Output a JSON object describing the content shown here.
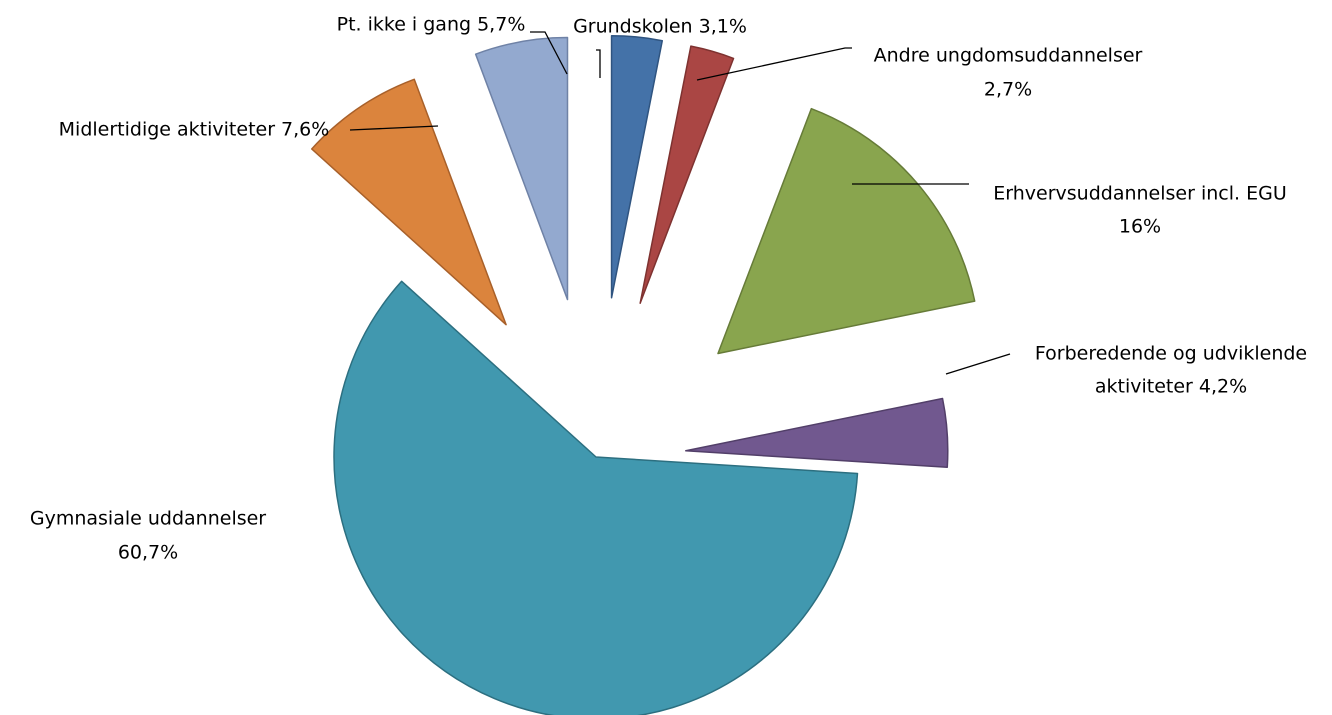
{
  "chart_data": {
    "type": "pie",
    "title": "",
    "legend": "none",
    "start_angle_deg": 0,
    "direction": "clockwise",
    "slices": [
      {
        "label": "Grundskolen",
        "value": 3.1,
        "display": "3,1%",
        "label_lines": [
          "Grundskolen 3,1%"
        ],
        "color": "#4472A8",
        "stroke": "#2F5480",
        "exploded": true
      },
      {
        "label": "Andre ungdomsuddannelser",
        "value": 2.7,
        "display": "2,7%",
        "label_lines": [
          "Andre ungdomsuddannelser",
          "2,7%"
        ],
        "color": "#AA4644",
        "stroke": "#7E3230",
        "exploded": true
      },
      {
        "label": "Erhvervsuddannelser incl. EGU",
        "value": 16,
        "display": "16%",
        "label_lines": [
          "Erhvervsuddannelser incl. EGU",
          "16%"
        ],
        "color": "#89A54E",
        "stroke": "#667B38",
        "exploded": true
      },
      {
        "label": "Forberedende og udviklende aktiviteter",
        "value": 4.2,
        "display": "4,2%",
        "label_lines": [
          "Forberedende og udviklende",
          "aktiviteter 4,2%"
        ],
        "color": "#71588F",
        "stroke": "#523F69",
        "exploded": true
      },
      {
        "label": "Gymnasiale uddannelser",
        "value": 60.7,
        "display": "60,7%",
        "label_lines": [
          "Gymnasiale uddannelser",
          "60,7%"
        ],
        "color": "#4198AF",
        "stroke": "#2C6F80",
        "exploded": false
      },
      {
        "label": "Midlertidige aktiviteter",
        "value": 7.6,
        "display": "7,6%",
        "label_lines": [
          "Midlertidige aktiviteter 7,6%"
        ],
        "color": "#DB843D",
        "stroke": "#A8602A",
        "exploded": true
      },
      {
        "label": "Pt. ikke i gang",
        "value": 5.7,
        "display": "5,7%",
        "label_lines": [
          "Pt. ikke i gang 5,7%"
        ],
        "color": "#93A9CF",
        "stroke": "#6F82A6",
        "exploded": true
      }
    ]
  }
}
